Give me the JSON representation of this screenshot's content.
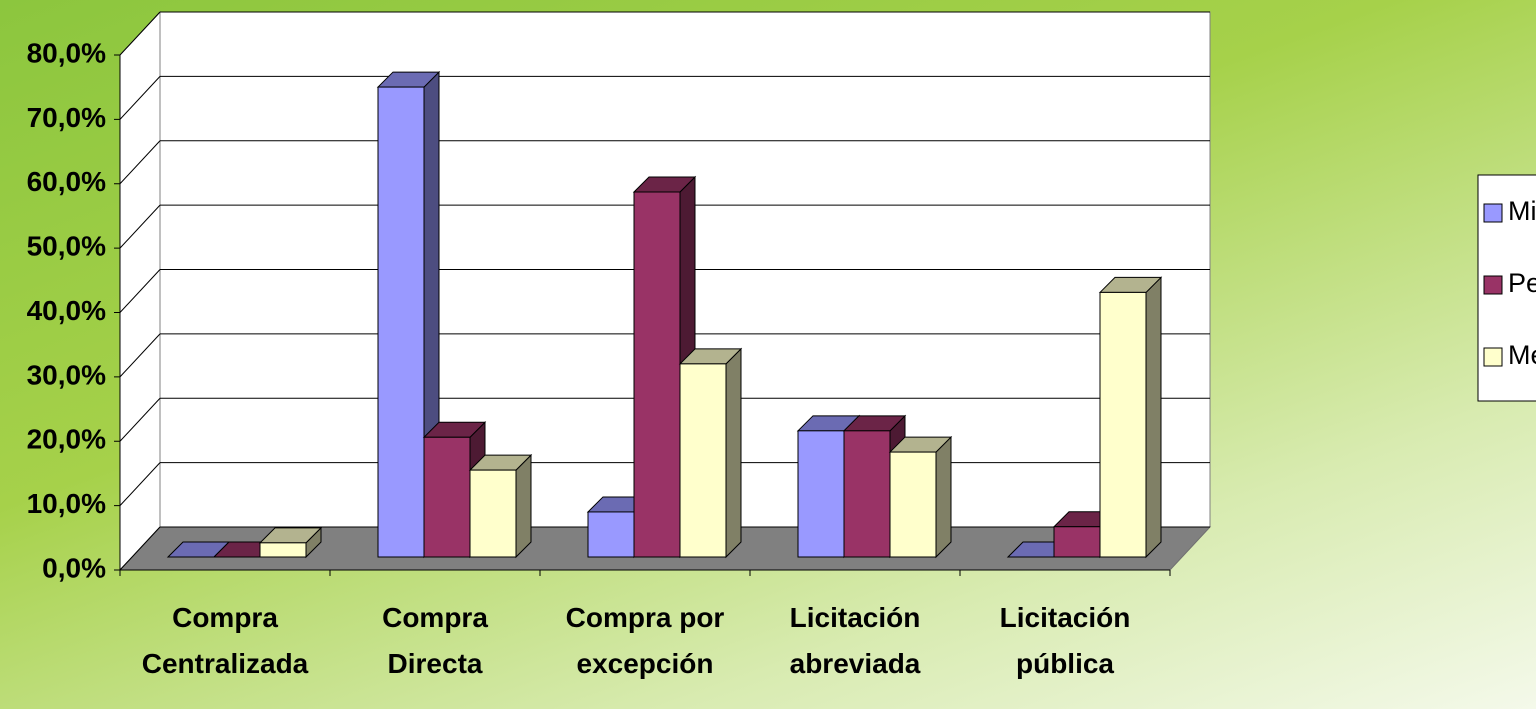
{
  "chart_data": {
    "type": "bar3d",
    "categories": [
      "Compra Centralizada",
      "Compra Directa",
      "Compra por excepción",
      "Licitación abreviada",
      "Licitación pública"
    ],
    "series": [
      {
        "name": "Micro",
        "color": "#9999ff",
        "values": [
          0,
          73,
          7,
          19.6,
          0
        ]
      },
      {
        "name": "Pequeña",
        "color": "#993366",
        "values": [
          0,
          18.6,
          56.7,
          19.6,
          4.7
        ]
      },
      {
        "name": "Mediana",
        "color": "#ffffcc",
        "values": [
          2.2,
          13.5,
          30,
          16.3,
          41.1
        ]
      }
    ],
    "ylim": [
      0,
      80
    ],
    "yticks": [
      {
        "value": 0,
        "label": "0,0%"
      },
      {
        "value": 10,
        "label": "10,0%"
      },
      {
        "value": 20,
        "label": "20,0%"
      },
      {
        "value": 30,
        "label": "30,0%"
      },
      {
        "value": 40,
        "label": "40,0%"
      },
      {
        "value": 50,
        "label": "50,0%"
      },
      {
        "value": 60,
        "label": "60,0%"
      },
      {
        "value": 70,
        "label": "70,0%"
      },
      {
        "value": 80,
        "label": "80,0%"
      }
    ],
    "grid": true,
    "legend": "right"
  }
}
